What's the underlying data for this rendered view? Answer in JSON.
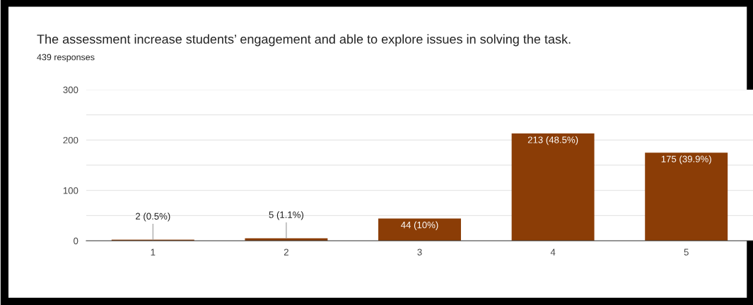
{
  "chart_data": {
    "type": "bar",
    "title": "The assessment increase students’ engagement and able to explore issues in solving the task.",
    "subtitle": "439 responses",
    "categories": [
      "1",
      "2",
      "3",
      "4",
      "5"
    ],
    "values": [
      2,
      5,
      44,
      213,
      175
    ],
    "value_labels": [
      "2 (0.5%)",
      "5 (1.1%)",
      "44 (10%)",
      "213 (48.5%)",
      "175 (39.9%)"
    ],
    "color": "#8b3d06",
    "ylim": [
      0,
      300
    ],
    "yticks": [
      0,
      {
        "value": 50,
        "label": null
      },
      100,
      {
        "value": 150,
        "label": null
      },
      200,
      {
        "value": 250,
        "label": null
      },
      300
    ],
    "grid": "y"
  }
}
